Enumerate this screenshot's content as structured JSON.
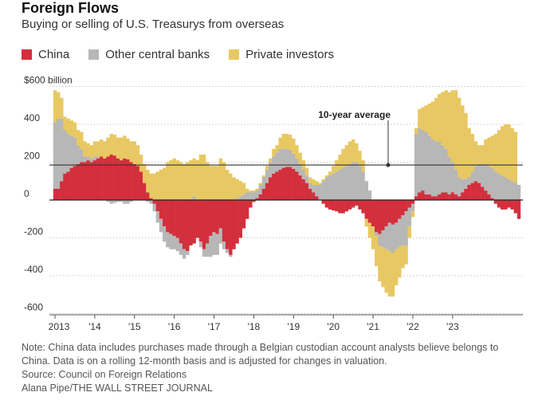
{
  "header": {
    "title": "Foreign Flows",
    "subtitle": "Buying or selling of U.S. Treasurys from overseas"
  },
  "legend": [
    {
      "label": "China",
      "color": "#d32f3c"
    },
    {
      "label": "Other central banks",
      "color": "#b7b7b7"
    },
    {
      "label": "Private investors",
      "color": "#e8c862"
    }
  ],
  "notes": {
    "note_line1": "Note: China data includes purchases made through a Belgian custodian account analysts believe belongs to",
    "note_line2": "China. Data is on a rolling 12-month basis and is adjusted for changes in valuation.",
    "source": "Source: Council on Foreign Relations",
    "credit": "Alana Pipe/THE WALL STREET JOURNAL"
  },
  "chart_data": {
    "type": "bar",
    "stacked": true,
    "y_unit": "billion",
    "ylim": [
      -620,
      620
    ],
    "y_ticks": [
      600,
      400,
      200,
      0,
      -200,
      -400,
      -600
    ],
    "y_tick_labels": [
      "$600 billion",
      "400",
      "200",
      "0",
      "-200",
      "-400",
      "-600"
    ],
    "x_tick_labels": [
      "2013",
      "'14",
      "'15",
      "'16",
      "'17",
      "'18",
      "'19",
      "'20",
      "'21",
      "'22",
      "'23"
    ],
    "x_tick_years": [
      2013,
      2014,
      2015,
      2016,
      2017,
      2018,
      2019,
      2020,
      2021,
      2022,
      2023
    ],
    "grid": true,
    "reference_line": {
      "label": "10-year average",
      "value": 185
    },
    "colors": {
      "china": "#d32f3c",
      "other": "#b7b7b7",
      "private": "#e8c862",
      "reference": "#333333"
    },
    "period": "monthly, Jan 2013 – Sep 2023",
    "series": [
      {
        "name": "China",
        "key": "china",
        "values": [
          60,
          60,
          100,
          140,
          150,
          170,
          180,
          190,
          200,
          200,
          210,
          200,
          210,
          220,
          230,
          220,
          230,
          240,
          235,
          220,
          210,
          220,
          215,
          200,
          190,
          180,
          150,
          90,
          40,
          10,
          -20,
          -60,
          -100,
          -140,
          -170,
          -180,
          -190,
          -200,
          -230,
          -260,
          -270,
          -240,
          -230,
          -200,
          -220,
          -260,
          -230,
          -190,
          -170,
          -180,
          -150,
          -220,
          -260,
          -290,
          -260,
          -230,
          -200,
          -150,
          -100,
          -40,
          -10,
          10,
          30,
          60,
          90,
          120,
          140,
          150,
          160,
          170,
          175,
          175,
          165,
          150,
          130,
          110,
          90,
          60,
          40,
          20,
          0,
          -20,
          -40,
          -50,
          -55,
          -60,
          -70,
          -70,
          -60,
          -50,
          -40,
          -30,
          -50,
          -70,
          -100,
          -120,
          -140,
          -170,
          -180,
          -160,
          -140,
          -120,
          -130,
          -120,
          -100,
          -80,
          -60,
          -40,
          -20,
          20,
          40,
          50,
          30,
          30,
          20,
          20,
          30,
          40,
          40,
          30,
          40,
          30,
          20,
          40,
          60,
          80,
          90,
          100,
          90,
          70,
          50,
          30,
          10,
          -20,
          -40,
          -50,
          -50,
          -40,
          -50,
          -70,
          -100
        ]
      },
      {
        "name": "Other central banks",
        "key": "other",
        "values": [
          350,
          370,
          330,
          230,
          200,
          170,
          150,
          100,
          70,
          30,
          20,
          20,
          20,
          10,
          0,
          0,
          -10,
          -20,
          -15,
          -10,
          -10,
          -20,
          -20,
          -10,
          0,
          0,
          0,
          0,
          -10,
          -20,
          -40,
          -60,
          -70,
          -80,
          -80,
          -80,
          -70,
          -70,
          -60,
          -50,
          -20,
          0,
          20,
          0,
          -30,
          -40,
          -70,
          -110,
          -120,
          -110,
          -80,
          -40,
          -20,
          -10,
          0,
          10,
          20,
          30,
          40,
          40,
          40,
          40,
          50,
          60,
          70,
          80,
          90,
          100,
          110,
          100,
          95,
          90,
          80,
          70,
          60,
          50,
          40,
          30,
          40,
          60,
          80,
          100,
          120,
          130,
          140,
          150,
          160,
          170,
          180,
          190,
          200,
          200,
          180,
          150,
          100,
          50,
          0,
          -20,
          -60,
          -90,
          -120,
          -150,
          -150,
          -140,
          -150,
          -160,
          -180,
          -100,
          -40,
          330,
          340,
          320,
          330,
          310,
          300,
          290,
          280,
          250,
          230,
          200,
          160,
          130,
          100,
          70,
          50,
          40,
          60,
          80,
          100,
          120,
          140,
          150,
          160,
          150,
          140,
          130,
          120,
          110,
          100,
          90,
          80
        ]
      },
      {
        "name": "Private investors",
        "key": "private",
        "values": [
          170,
          140,
          110,
          70,
          80,
          80,
          80,
          80,
          90,
          80,
          70,
          70,
          80,
          80,
          90,
          90,
          100,
          110,
          110,
          110,
          120,
          120,
          110,
          110,
          120,
          110,
          90,
          100,
          120,
          130,
          140,
          150,
          160,
          170,
          200,
          210,
          220,
          210,
          200,
          190,
          200,
          210,
          200,
          210,
          240,
          240,
          200,
          180,
          180,
          180,
          220,
          200,
          160,
          140,
          120,
          100,
          80,
          60,
          20,
          10,
          10,
          10,
          10,
          10,
          20,
          20,
          40,
          40,
          60,
          80,
          80,
          80,
          80,
          70,
          60,
          50,
          40,
          30,
          30,
          20,
          10,
          10,
          10,
          20,
          40,
          60,
          80,
          100,
          110,
          120,
          120,
          100,
          80,
          60,
          -40,
          -80,
          -120,
          -160,
          -190,
          -210,
          -230,
          -240,
          -230,
          -190,
          -160,
          -120,
          -100,
          -60,
          -30,
          30,
          100,
          120,
          140,
          170,
          200,
          230,
          250,
          280,
          310,
          340,
          380,
          420,
          420,
          390,
          350,
          260,
          200,
          130,
          100,
          100,
          130,
          150,
          170,
          200,
          230,
          260,
          280,
          290,
          280,
          270
        ]
      }
    ]
  }
}
